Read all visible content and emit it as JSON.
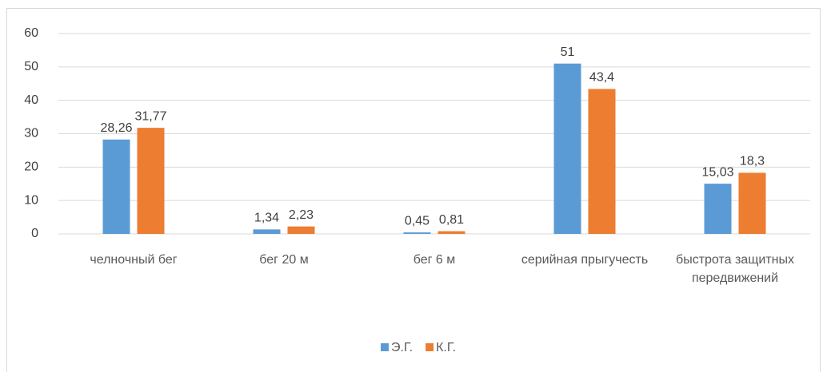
{
  "chart_data": {
    "type": "bar",
    "categories": [
      "челночный бег",
      "бег 20 м",
      "бег 6 м",
      "серийная прыгучесть",
      "быстрота защитных передвижений"
    ],
    "series": [
      {
        "name": "Э.Г.",
        "color": "#5b9bd5",
        "values": [
          28.26,
          1.34,
          0.45,
          51,
          15.03
        ],
        "value_labels": [
          "28,26",
          "1,34",
          "0,45",
          "51",
          "15,03"
        ]
      },
      {
        "name": "К.Г.",
        "color": "#ed7d31",
        "values": [
          31.77,
          2.23,
          0.81,
          43.4,
          18.3
        ],
        "value_labels": [
          "31,77",
          "2,23",
          "0,81",
          "43,4",
          "18,3"
        ]
      }
    ],
    "ylim": [
      0,
      60
    ],
    "yticks": [
      0,
      10,
      20,
      30,
      40,
      50,
      60
    ],
    "grid": true,
    "legend": "bottom"
  }
}
